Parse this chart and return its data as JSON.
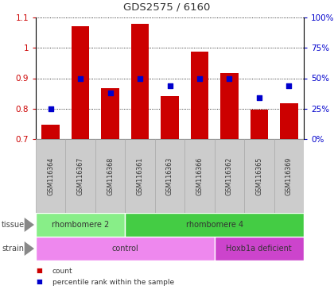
{
  "title": "GDS2575 / 6160",
  "samples": [
    "GSM116364",
    "GSM116367",
    "GSM116368",
    "GSM116361",
    "GSM116363",
    "GSM116366",
    "GSM116362",
    "GSM116365",
    "GSM116369"
  ],
  "count_values": [
    0.748,
    1.07,
    0.868,
    1.08,
    0.84,
    0.988,
    0.918,
    0.798,
    0.818
  ],
  "percentile_values": [
    25,
    50,
    38,
    50,
    44,
    50,
    50,
    34,
    44
  ],
  "ylim_left": [
    0.7,
    1.1
  ],
  "ylim_right": [
    0,
    100
  ],
  "bar_color": "#cc0000",
  "dot_color": "#0000cc",
  "tissue_groups": [
    {
      "label": "rhombomere 2",
      "start": 0,
      "end": 3,
      "color": "#88ee88"
    },
    {
      "label": "rhombomere 4",
      "start": 3,
      "end": 9,
      "color": "#44cc44"
    }
  ],
  "strain_groups": [
    {
      "label": "control",
      "start": 0,
      "end": 6,
      "color": "#ee88ee"
    },
    {
      "label": "Hoxb1a deficient",
      "start": 6,
      "end": 9,
      "color": "#cc44cc"
    }
  ],
  "legend_items": [
    {
      "label": "count",
      "color": "#cc0000"
    },
    {
      "label": "percentile rank within the sample",
      "color": "#0000cc"
    }
  ],
  "ylabel_left_color": "#cc0000",
  "ylabel_right_color": "#0000cc",
  "yticks_left": [
    0.7,
    0.8,
    0.9,
    1.0,
    1.1
  ],
  "ytick_labels_left": [
    "0.7",
    "0.8",
    "0.9",
    "1",
    "1.1"
  ],
  "yticks_right": [
    0,
    25,
    50,
    75,
    100
  ],
  "ytick_labels_right": [
    "0%",
    "25%",
    "50%",
    "75%",
    "100%"
  ],
  "bg_color": "#ffffff",
  "sample_label_bg": "#cccccc",
  "bar_width": 0.6,
  "dot_size": 25,
  "tissue_row_label": "tissue",
  "strain_row_label": "strain"
}
